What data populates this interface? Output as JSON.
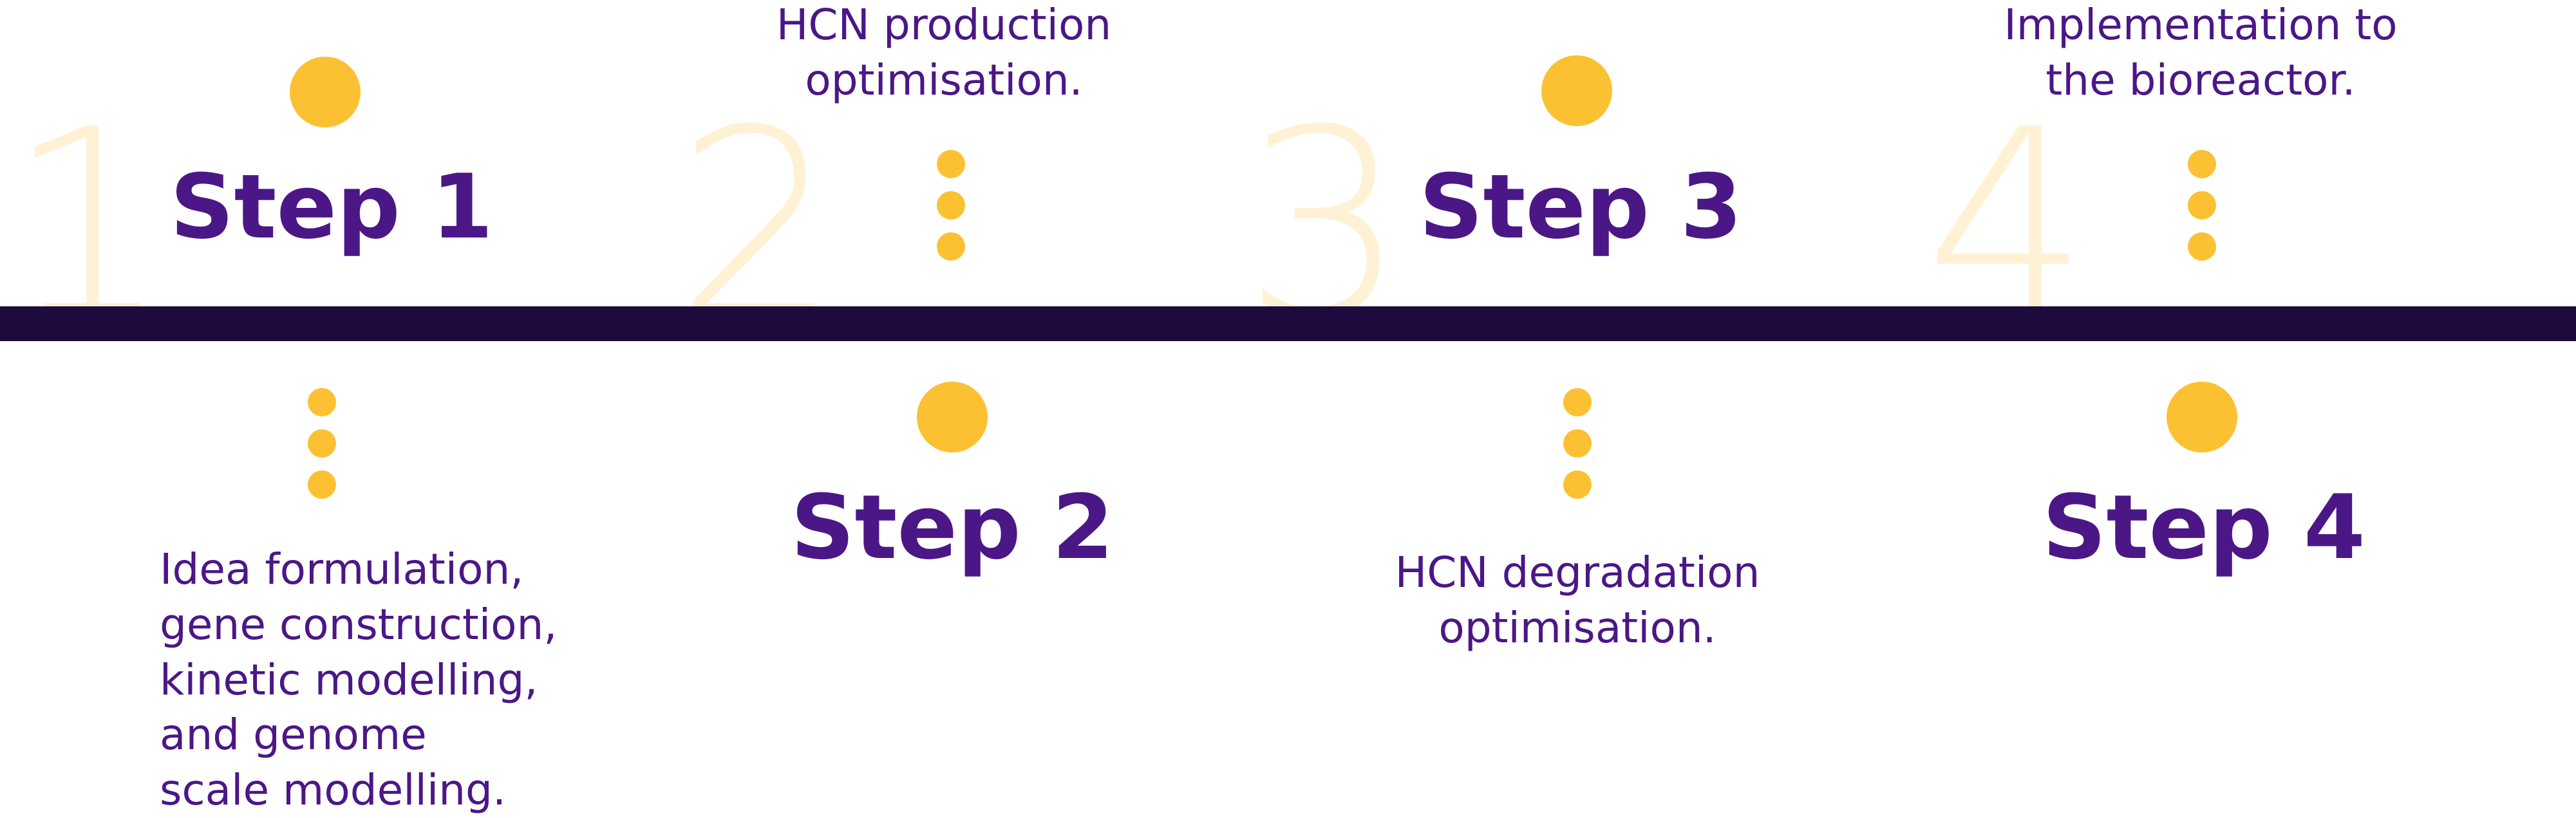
{
  "colors": {
    "accent_dot": "#FCC133",
    "text": "#4B1786",
    "baseline": "#1E0A3C",
    "numeral": "#FFF1D4"
  },
  "steps": [
    {
      "number": "1",
      "label": "Step 1",
      "description": [
        "Idea formulation,",
        "gene construction,",
        "kinetic modelling,",
        "and genome",
        "scale modelling."
      ]
    },
    {
      "number": "2",
      "label": "Step 2",
      "description": [
        "HCN production",
        "optimisation."
      ]
    },
    {
      "number": "3",
      "label": "Step 3",
      "description": [
        "HCN degradation",
        "optimisation."
      ]
    },
    {
      "number": "4",
      "label": "Step 4",
      "description": [
        "Implementation to",
        "the bioreactor."
      ]
    }
  ]
}
